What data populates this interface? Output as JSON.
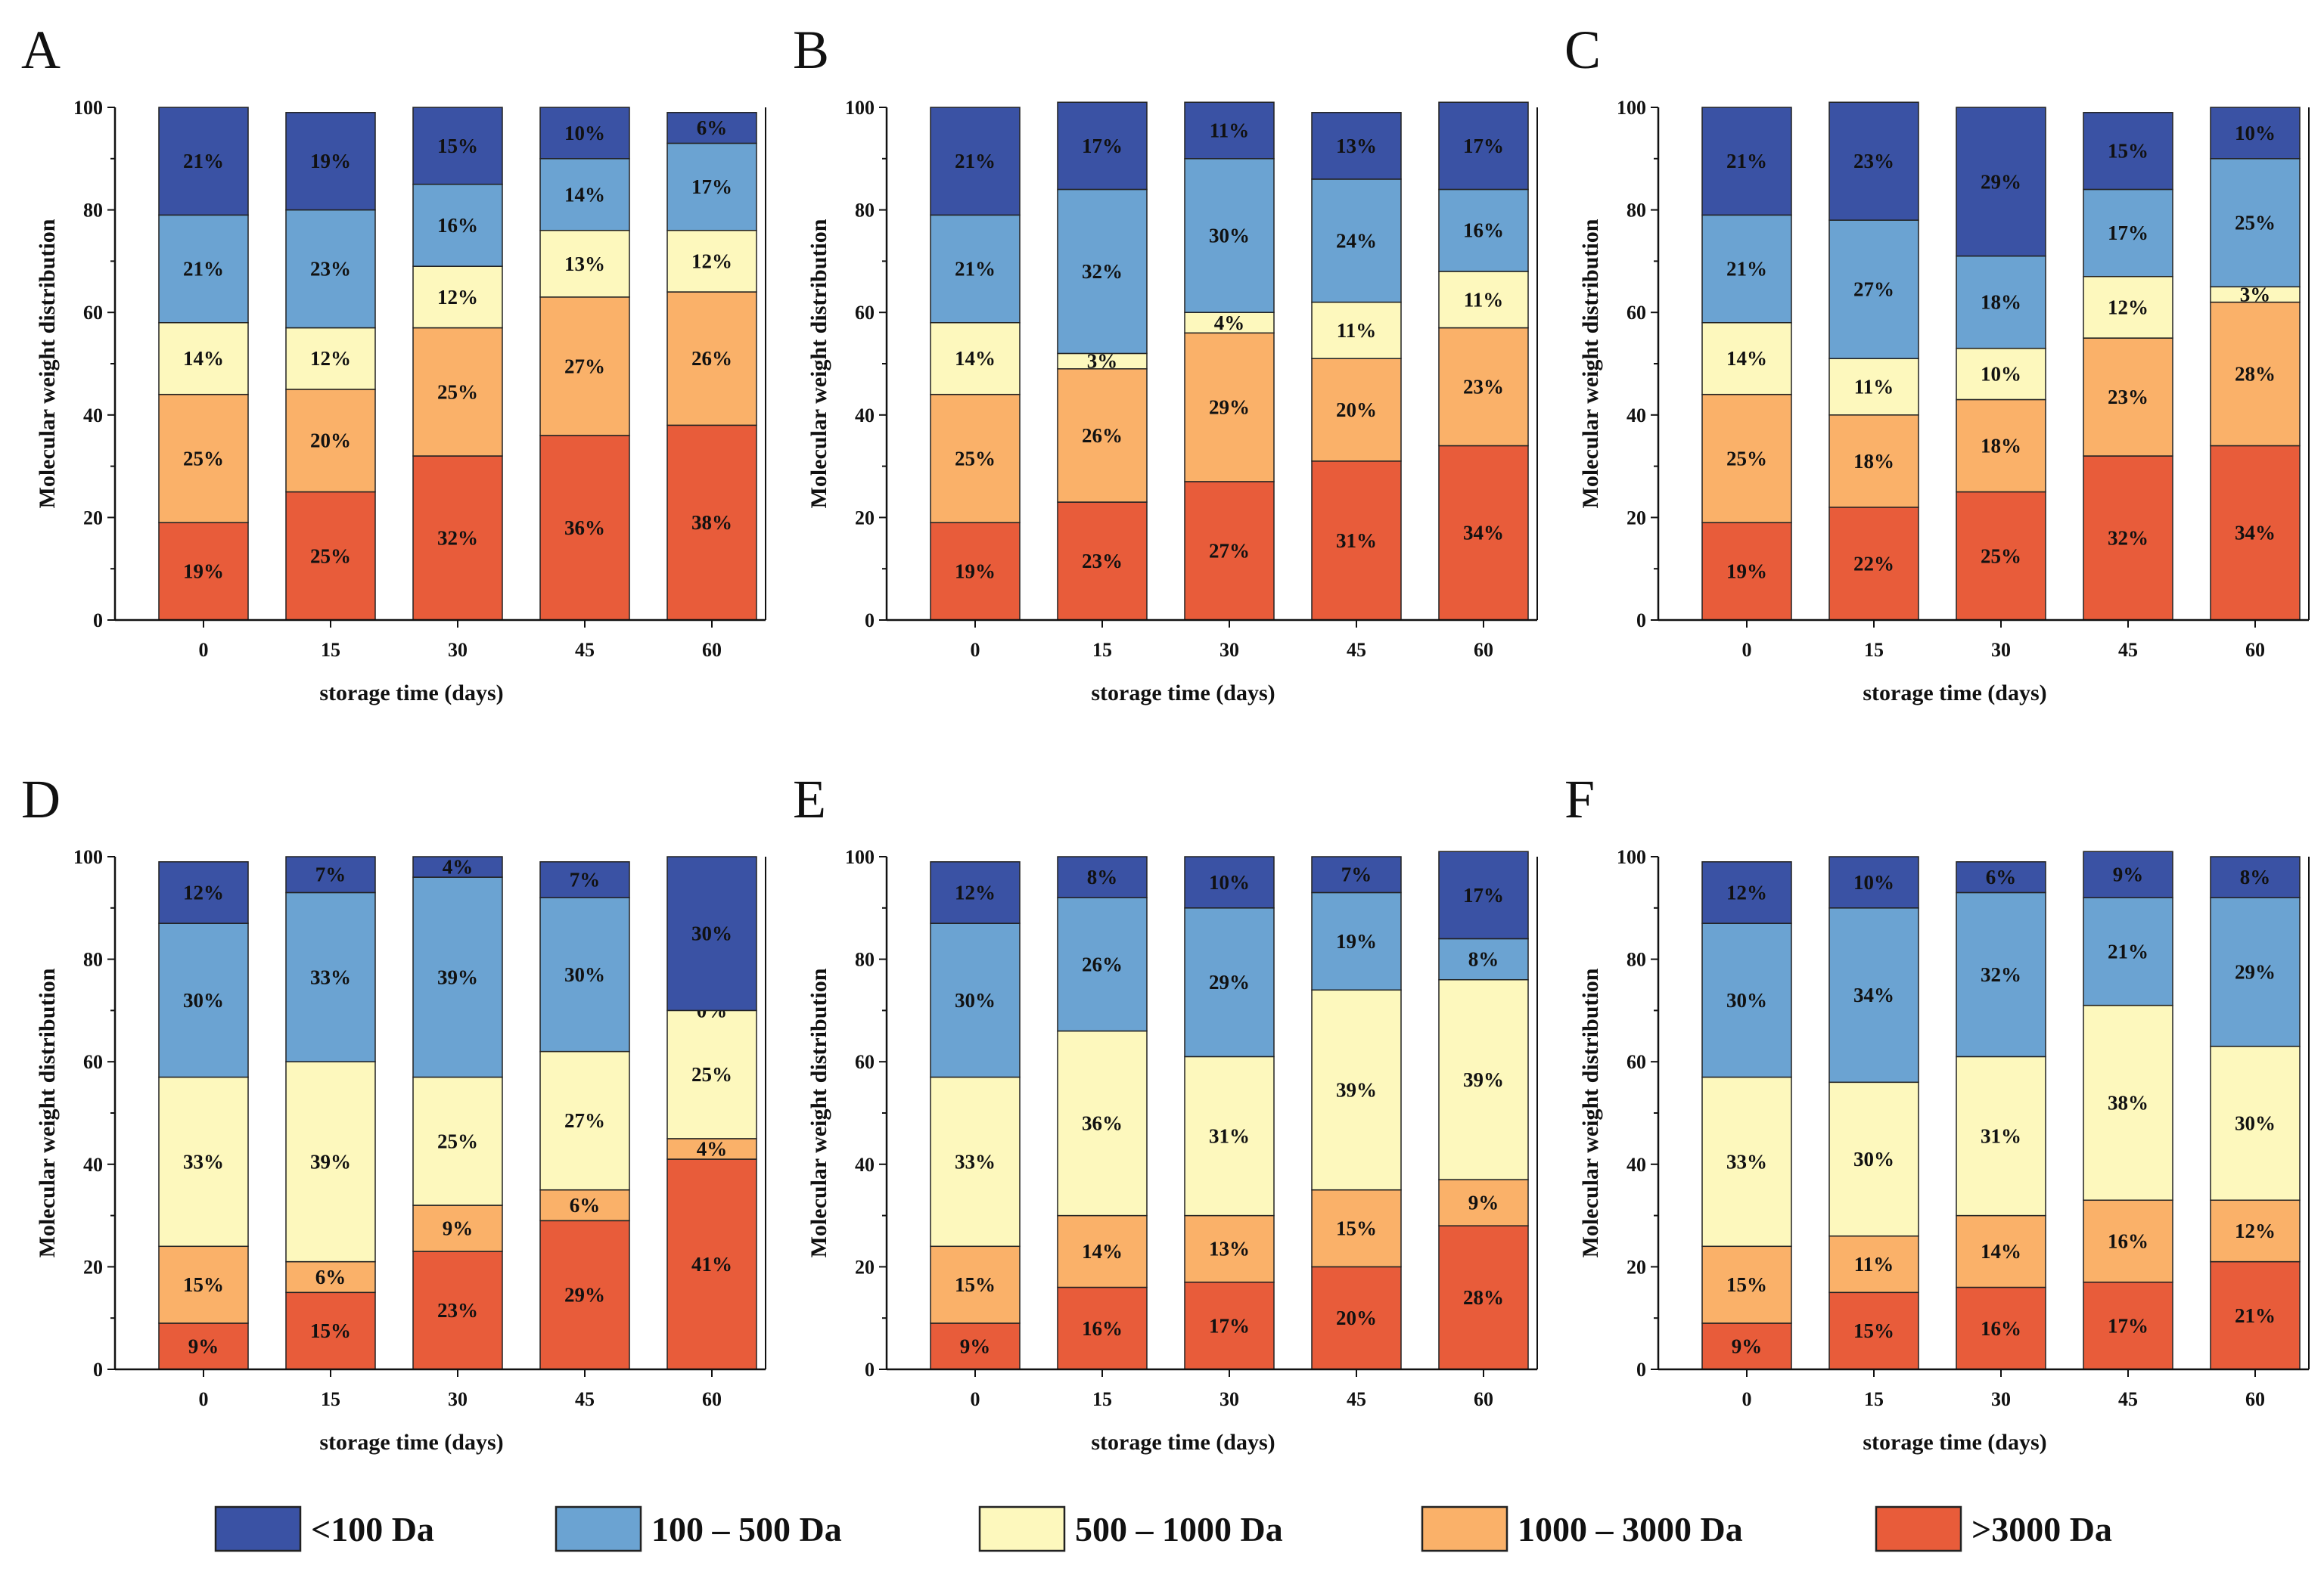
{
  "chart_data": {
    "type": "bar",
    "stacked": true,
    "xlabel": "storage time (days)",
    "ylabel": "Molecular weight distribution",
    "ylim": [
      0,
      100
    ],
    "yticks": [
      "0",
      "20",
      "40",
      "60",
      "80",
      "100"
    ],
    "categories": [
      "0",
      "15",
      "30",
      "45",
      "60"
    ],
    "legend": [
      {
        "name": "<100 Da",
        "color": "#3a52a4"
      },
      {
        "name": "100 – 500 Da",
        "color": "#6ba3d2"
      },
      {
        "name": "500 – 1000 Da",
        "color": "#fdf8bd"
      },
      {
        "name": "1000 – 3000 Da",
        "color": "#fab169"
      },
      {
        "name": ">3000 Da",
        "color": "#e85c3a"
      }
    ],
    "panels": [
      {
        "letter": "A",
        "series": [
          {
            "name": ">3000 Da",
            "values": [
              19,
              25,
              32,
              36,
              38
            ]
          },
          {
            "name": "1000 – 3000 Da",
            "values": [
              25,
              20,
              25,
              27,
              26
            ]
          },
          {
            "name": "500 – 1000 Da",
            "values": [
              14,
              12,
              12,
              13,
              12
            ]
          },
          {
            "name": "100 – 500 Da",
            "values": [
              21,
              23,
              16,
              14,
              17
            ]
          },
          {
            "name": "<100 Da",
            "values": [
              21,
              19,
              15,
              10,
              6
            ]
          }
        ]
      },
      {
        "letter": "B",
        "series": [
          {
            "name": ">3000 Da",
            "values": [
              19,
              23,
              27,
              31,
              34
            ]
          },
          {
            "name": "1000 – 3000 Da",
            "values": [
              25,
              26,
              29,
              20,
              23
            ]
          },
          {
            "name": "500 – 1000 Da",
            "values": [
              14,
              3,
              4,
              11,
              11
            ]
          },
          {
            "name": "100 – 500 Da",
            "values": [
              21,
              32,
              30,
              24,
              16
            ]
          },
          {
            "name": "<100 Da",
            "values": [
              21,
              17,
              11,
              13,
              17
            ]
          }
        ]
      },
      {
        "letter": "C",
        "series": [
          {
            "name": ">3000 Da",
            "values": [
              19,
              22,
              25,
              32,
              34
            ]
          },
          {
            "name": "1000 – 3000 Da",
            "values": [
              25,
              18,
              18,
              23,
              28
            ]
          },
          {
            "name": "500 – 1000 Da",
            "values": [
              14,
              11,
              10,
              12,
              3
            ]
          },
          {
            "name": "100 – 500 Da",
            "values": [
              21,
              27,
              18,
              17,
              25
            ]
          },
          {
            "name": "<100 Da",
            "values": [
              21,
              23,
              29,
              15,
              10
            ]
          }
        ]
      },
      {
        "letter": "D",
        "series": [
          {
            "name": ">3000 Da",
            "values": [
              9,
              15,
              23,
              29,
              41
            ]
          },
          {
            "name": "1000 – 3000 Da",
            "values": [
              15,
              6,
              9,
              6,
              4
            ]
          },
          {
            "name": "500 – 1000 Da",
            "values": [
              33,
              39,
              25,
              27,
              25
            ]
          },
          {
            "name": "100 – 500 Da",
            "values": [
              30,
              33,
              39,
              30,
              0
            ]
          },
          {
            "name": "<100 Da",
            "values": [
              12,
              7,
              4,
              7,
              30
            ]
          }
        ]
      },
      {
        "letter": "E",
        "series": [
          {
            "name": ">3000 Da",
            "values": [
              9,
              16,
              17,
              20,
              28
            ]
          },
          {
            "name": "1000 – 3000 Da",
            "values": [
              15,
              14,
              13,
              15,
              9
            ]
          },
          {
            "name": "500 – 1000 Da",
            "values": [
              33,
              36,
              31,
              39,
              39
            ]
          },
          {
            "name": "100 – 500 Da",
            "values": [
              30,
              26,
              29,
              19,
              8
            ]
          },
          {
            "name": "<100 Da",
            "values": [
              12,
              8,
              10,
              7,
              17
            ]
          }
        ]
      },
      {
        "letter": "F",
        "series": [
          {
            "name": ">3000 Da",
            "values": [
              9,
              15,
              16,
              17,
              21
            ]
          },
          {
            "name": "1000 – 3000 Da",
            "values": [
              15,
              11,
              14,
              16,
              12
            ]
          },
          {
            "name": "500 – 1000 Da",
            "values": [
              33,
              30,
              31,
              38,
              30
            ]
          },
          {
            "name": "100 – 500 Da",
            "values": [
              30,
              34,
              32,
              21,
              29
            ]
          },
          {
            "name": "<100 Da",
            "values": [
              12,
              10,
              6,
              9,
              8
            ]
          }
        ]
      }
    ]
  }
}
